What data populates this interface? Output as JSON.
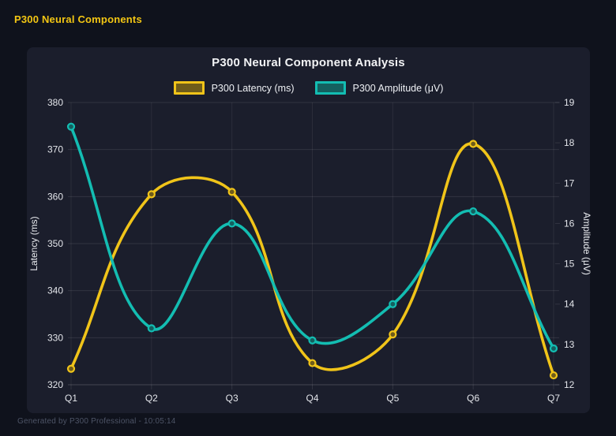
{
  "page": {
    "title": "P300 Neural Components"
  },
  "footer": {
    "text": "Generated by P300 Professional - 10:05:14"
  },
  "chart": {
    "title": "P300 Neural Component Analysis"
  },
  "chart_data": {
    "type": "line",
    "title": "P300 Neural Component Analysis",
    "categories": [
      "Q1",
      "Q2",
      "Q3",
      "Q4",
      "Q5",
      "Q6",
      "Q7"
    ],
    "series": [
      {
        "name": "P300 Latency (ms)",
        "axis": "left",
        "color": "#f0c419",
        "point_fill": "#6f5c1a",
        "values": [
          323.4,
          360.5,
          361.0,
          324.6,
          330.7,
          371.2,
          322.0
        ]
      },
      {
        "name": "P300 Amplitude (μV)",
        "axis": "right",
        "color": "#13bdb2",
        "point_fill": "#14605f",
        "values": [
          18.4,
          13.4,
          16.0,
          13.1,
          14.0,
          16.3,
          12.9
        ]
      }
    ],
    "axes": {
      "left": {
        "label": "Latency (ms)",
        "min": 320,
        "max": 380,
        "ticks": [
          380,
          370,
          360,
          350,
          340,
          330,
          320
        ]
      },
      "right": {
        "label": "Amplitude (μV)",
        "min": 12,
        "max": 19,
        "ticks": [
          19,
          18,
          17,
          16,
          15,
          14,
          13,
          12
        ]
      }
    },
    "legend_position": "top",
    "grid": true,
    "line_style": "smooth cubic, tension 0.4, circle markers"
  },
  "colors": {
    "background": "#0f121c",
    "panel": "#1b1e2c",
    "latency": "#f0c419",
    "amplitude": "#13bdb2",
    "header_text": "#f3c613",
    "tick_text": "#e3e5ea",
    "gridline": "rgba(255,255,255,0.10)"
  }
}
